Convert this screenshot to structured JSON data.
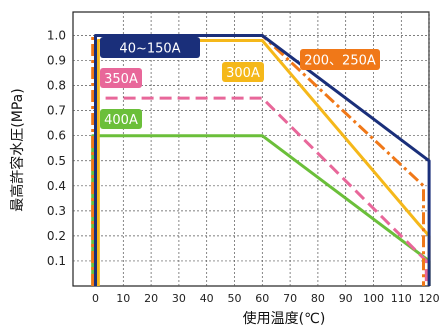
{
  "chart_data": {
    "type": "line",
    "xlabel": "使用温度(℃)",
    "ylabel": "最高許容水圧(MPa)",
    "xlim": [
      -5,
      125
    ],
    "ylim": [
      0,
      1.07
    ],
    "xticks": [
      "0",
      "10",
      "20",
      "30",
      "40",
      "50",
      "60",
      "70",
      "80",
      "90",
      "100",
      "110",
      "120"
    ],
    "yticks": [
      "0.1",
      "0.2",
      "0.3",
      "0.4",
      "0.5",
      "0.6",
      "0.7",
      "0.8",
      "0.9",
      "1.0"
    ],
    "grid": true,
    "series": [
      {
        "name": "40~150A",
        "color": "#1a2f7a",
        "style": "solid",
        "points": [
          [
            0,
            0
          ],
          [
            0,
            1.0
          ],
          [
            60,
            1.0
          ],
          [
            120,
            0.5
          ],
          [
            120,
            0
          ]
        ]
      },
      {
        "name": "200、250A",
        "color": "#f07818",
        "style": "dashdot",
        "points": [
          [
            -1,
            0
          ],
          [
            -1,
            1.0
          ],
          [
            60,
            1.0
          ],
          [
            118,
            0.4
          ],
          [
            118,
            0
          ]
        ]
      },
      {
        "name": "300A",
        "color": "#f5b81a",
        "style": "solid",
        "points": [
          [
            1,
            0
          ],
          [
            1,
            0.98
          ],
          [
            60,
            0.98
          ],
          [
            116,
            0.25
          ],
          [
            120,
            0.2
          ],
          [
            120,
            0
          ]
        ]
      },
      {
        "name": "350A",
        "color": "#e8679a",
        "style": "dashed",
        "points": [
          [
            0,
            0
          ],
          [
            0,
            0.75
          ],
          [
            60,
            0.75
          ],
          [
            119,
            0.1
          ],
          [
            119,
            0
          ]
        ]
      },
      {
        "name": "400A",
        "color": "#6bbf3a",
        "style": "solid",
        "points": [
          [
            -1,
            0
          ],
          [
            -1,
            0.6
          ],
          [
            60,
            0.6
          ],
          [
            120,
            0.1
          ],
          [
            120,
            0
          ]
        ]
      }
    ],
    "legend_tags": [
      {
        "text": "40~150A",
        "bg": "#1a2f7a"
      },
      {
        "text": "200、250A",
        "bg": "#f07818"
      },
      {
        "text": "300A",
        "bg": "#f5b81a"
      },
      {
        "text": "350A",
        "bg": "#e8679a"
      },
      {
        "text": "400A",
        "bg": "#6bbf3a"
      }
    ]
  }
}
